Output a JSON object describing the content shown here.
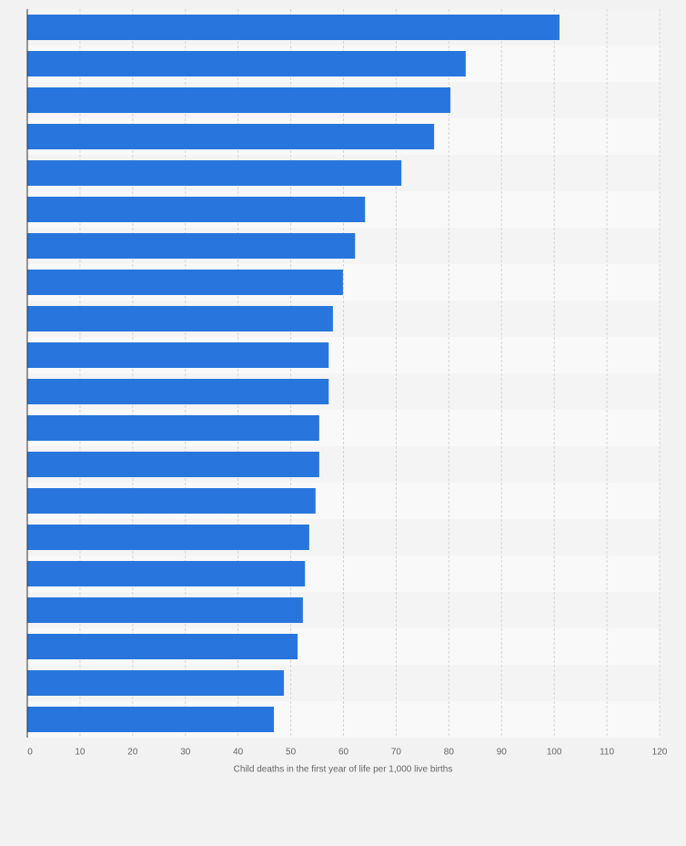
{
  "chart_data": {
    "type": "bar",
    "orientation": "horizontal",
    "x_label": "Child deaths in the first year of life per 1,000 live births",
    "categories": [
      null,
      null,
      null,
      null,
      null,
      null,
      null,
      null,
      null,
      null,
      null,
      null,
      null,
      null,
      null,
      null,
      null,
      null,
      null,
      null
    ],
    "values": [
      101.0,
      83.2,
      80.3,
      77.2,
      71.0,
      64.1,
      62.2,
      59.9,
      58.0,
      57.2,
      57.2,
      55.4,
      55.4,
      54.7,
      53.5,
      52.7,
      52.3,
      51.3,
      48.7,
      46.8
    ],
    "color": "#2876dd",
    "xlim": [
      0,
      120
    ],
    "xticks": [
      0,
      10,
      20,
      30,
      40,
      50,
      60,
      70,
      80,
      90,
      100,
      110,
      120
    ],
    "grid": true
  }
}
